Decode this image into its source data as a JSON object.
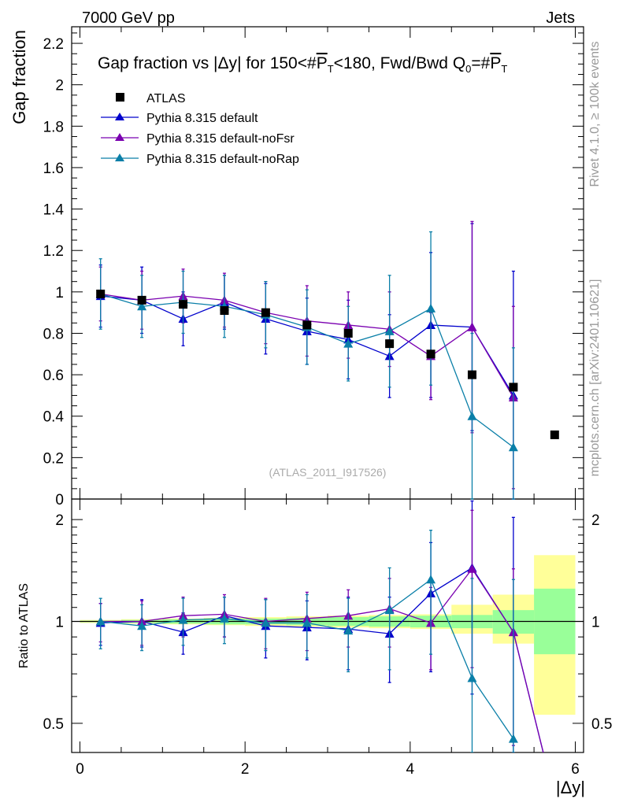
{
  "header": {
    "left": "7000 GeV pp",
    "right": "Jets"
  },
  "side_labels": {
    "rivet": "Rivet 4.1.0, ≥ 100k events",
    "mcplots": "mcplots.cern.ch [arXiv:2401.10621]"
  },
  "colors": {
    "atlas": "#000000",
    "default": "#0000cc",
    "noFsr": "#7a00b0",
    "noRap": "#0a7fa8",
    "band_inner": "#99ff99",
    "band_outer": "#ffff99"
  },
  "chart_data": [
    {
      "type": "scatter",
      "panel": "main",
      "title": "Gap fraction vs |Δy| for 150<#P̅T<180, Fwd/Bwd Q0=#P̅T",
      "title_parts": {
        "pre": "Gap fraction vs |",
        "delta_y": "Δy",
        "mid": "| for 150<#",
        "pt": "P",
        "pt_sub": "T",
        "post": "<180, Fwd/Bwd Q",
        "q_sub": "0",
        "eq": "=#",
        "pt2": "P",
        "pt2_sub": "T"
      },
      "ylabel": "Gap fraction",
      "xlim": [
        -0.1,
        6.1
      ],
      "ylim": [
        0,
        2.28
      ],
      "yticks": [
        0,
        0.2,
        0.4,
        0.6,
        0.8,
        1,
        1.2,
        1.4,
        1.6,
        1.8,
        2,
        2.2
      ],
      "ytick_labels": [
        "0",
        "0.2",
        "0.4",
        "0.6",
        "0.8",
        "1",
        "1.2",
        "1.4",
        "1.6",
        "1.8",
        "2",
        "2.2"
      ],
      "watermark": "(ATLAS_2011_I917526)",
      "legend": [
        "ATLAS",
        "Pythia 8.315 default",
        "Pythia 8.315 default-noFsr",
        "Pythia 8.315 default-noRap"
      ],
      "x": [
        0.25,
        0.75,
        1.25,
        1.75,
        2.25,
        2.75,
        3.25,
        3.75,
        4.25,
        4.75,
        5.25,
        5.75
      ],
      "series": [
        {
          "name": "ATLAS",
          "marker": "square",
          "values": [
            0.99,
            0.96,
            0.94,
            0.91,
            0.9,
            0.84,
            0.8,
            0.75,
            0.7,
            0.6,
            0.54,
            0.31
          ]
        },
        {
          "name": "Pythia 8.315 default",
          "marker": "triangle",
          "values": [
            0.98,
            0.96,
            0.87,
            0.95,
            0.87,
            0.81,
            0.77,
            0.69,
            0.84,
            0.83,
            0.5
          ],
          "errors": [
            0.15,
            0.16,
            0.13,
            0.13,
            0.17,
            0.16,
            0.19,
            0.2,
            0.35,
            0.5,
            0.6
          ]
        },
        {
          "name": "Pythia 8.315 default-noFsr",
          "marker": "triangle",
          "values": [
            0.99,
            0.96,
            0.98,
            0.96,
            0.9,
            0.86,
            0.84,
            0.82,
            0.69,
            0.83,
            0.49
          ],
          "errors": [
            0.13,
            0.14,
            0.13,
            0.13,
            0.15,
            0.17,
            0.16,
            0.18,
            0.21,
            0.51,
            0.44
          ]
        },
        {
          "name": "Pythia 8.315 default-noRap",
          "marker": "triangle",
          "values": [
            0.99,
            0.93,
            0.95,
            0.93,
            0.89,
            0.83,
            0.75,
            0.81,
            0.92,
            0.4,
            0.25
          ],
          "errors": [
            0.17,
            0.15,
            0.15,
            0.15,
            0.16,
            0.18,
            0.18,
            0.27,
            0.37,
            0.4,
            0.48
          ]
        }
      ]
    },
    {
      "type": "scatter",
      "panel": "ratio",
      "ylabel": "Ratio to ATLAS",
      "xlabel": "|Δy|",
      "xlim": [
        -0.1,
        6.1
      ],
      "ylim": [
        0.41,
        2.3
      ],
      "yscale": "log",
      "xticks": [
        0,
        2,
        4,
        6
      ],
      "xtick_labels": [
        "0",
        "2",
        "4",
        "6"
      ],
      "yticks": [
        0.5,
        1,
        2
      ],
      "ytick_labels": [
        "0.5",
        "1",
        "2"
      ],
      "x": [
        0.25,
        0.75,
        1.25,
        1.75,
        2.25,
        2.75,
        3.25,
        3.75,
        4.25,
        4.75,
        5.25
      ],
      "band": {
        "edges": [
          0,
          0.5,
          1,
          1.5,
          2,
          2.5,
          3,
          3.5,
          4,
          4.5,
          5,
          5.5,
          6
        ],
        "inner_lo": [
          0.995,
          0.99,
          0.985,
          0.98,
          0.98,
          0.975,
          0.97,
          0.965,
          0.96,
          0.955,
          0.92,
          0.8
        ],
        "inner_hi": [
          1.005,
          1.01,
          1.015,
          1.02,
          1.02,
          1.025,
          1.03,
          1.035,
          1.04,
          1.045,
          1.08,
          1.25
        ],
        "outer_lo": [
          0.99,
          0.985,
          0.98,
          0.975,
          0.97,
          0.965,
          0.96,
          0.955,
          0.95,
          0.92,
          0.86,
          0.53
        ],
        "outer_hi": [
          1.01,
          1.015,
          1.02,
          1.025,
          1.03,
          1.035,
          1.04,
          1.045,
          1.05,
          1.12,
          1.2,
          1.57
        ]
      },
      "series": [
        {
          "name": "Pythia 8.315 default",
          "values": [
            0.99,
            1.0,
            0.93,
            1.04,
            0.97,
            0.96,
            0.95,
            0.92,
            1.21,
            1.44,
            0.93
          ],
          "errors": [
            0.14,
            0.16,
            0.13,
            0.14,
            0.19,
            0.19,
            0.23,
            0.26,
            0.5,
            0.83,
            1.1
          ]
        },
        {
          "name": "Pythia 8.315 default-noFsr",
          "values": [
            1.0,
            1.0,
            1.04,
            1.05,
            1.0,
            1.02,
            1.04,
            1.09,
            0.99,
            1.43,
            0.93
          ],
          "errors": [
            0.13,
            0.15,
            0.14,
            0.15,
            0.17,
            0.2,
            0.2,
            0.25,
            0.27,
            0.7,
            0.5
          ]
        },
        {
          "name": "Pythia 8.315 default-noRap",
          "values": [
            1.0,
            0.97,
            1.01,
            1.02,
            0.99,
            0.99,
            0.94,
            1.08,
            1.33,
            0.68,
            0.45
          ],
          "errors": [
            0.17,
            0.15,
            0.16,
            0.16,
            0.17,
            0.21,
            0.23,
            0.36,
            0.53,
            0.66,
            0.88
          ]
        }
      ]
    }
  ]
}
